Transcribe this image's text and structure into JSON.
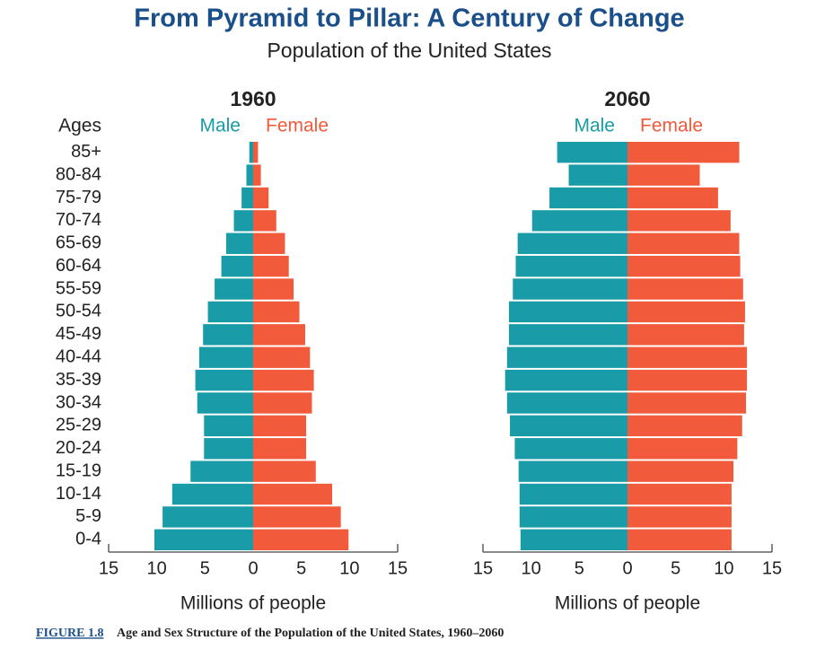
{
  "title": "From Pyramid to Pillar: A Century of Change",
  "subtitle": "Population of the United States",
  "figure_label": "FIGURE 1.8",
  "caption": "Age and Sex Structure of the Population of the United States, 1960–2060",
  "chart_data": [
    {
      "type": "pyramid",
      "title": "1960",
      "ylabel": "Ages",
      "xlabel": "Millions of people",
      "categories": [
        "0-4",
        "5-9",
        "10-14",
        "15-19",
        "20-24",
        "25-29",
        "30-34",
        "35-39",
        "40-44",
        "45-49",
        "50-54",
        "55-59",
        "60-64",
        "65-69",
        "70-74",
        "75-79",
        "80-84",
        "85+"
      ],
      "series": [
        {
          "name": "Male",
          "color": "#1a9ba8",
          "values": [
            10.25,
            9.4,
            8.4,
            6.5,
            5.1,
            5.1,
            5.8,
            6.0,
            5.6,
            5.2,
            4.7,
            4.0,
            3.3,
            2.8,
            2.0,
            1.2,
            0.7,
            0.4
          ]
        },
        {
          "name": "Female",
          "color": "#f15a3a",
          "values": [
            9.9,
            9.1,
            8.2,
            6.5,
            5.5,
            5.5,
            6.1,
            6.3,
            5.9,
            5.4,
            4.8,
            4.2,
            3.7,
            3.3,
            2.4,
            1.6,
            0.8,
            0.5
          ]
        }
      ],
      "xlim": [
        0,
        15
      ],
      "xticks": [
        0,
        5,
        10,
        15
      ]
    },
    {
      "type": "pyramid",
      "title": "2060",
      "xlabel": "Millions of people",
      "categories": [
        "0-4",
        "5-9",
        "10-14",
        "15-19",
        "20-24",
        "25-29",
        "30-34",
        "35-39",
        "40-44",
        "45-49",
        "50-54",
        "55-59",
        "60-64",
        "65-69",
        "70-74",
        "75-79",
        "80-84",
        "85+"
      ],
      "series": [
        {
          "name": "Male",
          "color": "#1a9ba8",
          "values": [
            11.1,
            11.2,
            11.2,
            11.3,
            11.7,
            12.2,
            12.5,
            12.7,
            12.5,
            12.3,
            12.3,
            11.9,
            11.6,
            11.4,
            9.9,
            8.1,
            6.1,
            7.3
          ]
        },
        {
          "name": "Female",
          "color": "#f15a3a",
          "values": [
            10.8,
            10.8,
            10.8,
            11.0,
            11.4,
            11.9,
            12.3,
            12.4,
            12.4,
            12.1,
            12.2,
            12.0,
            11.7,
            11.6,
            10.7,
            9.4,
            7.5,
            11.6
          ]
        }
      ],
      "xlim": [
        0,
        15
      ],
      "xticks": [
        0,
        5,
        10,
        15
      ]
    }
  ]
}
